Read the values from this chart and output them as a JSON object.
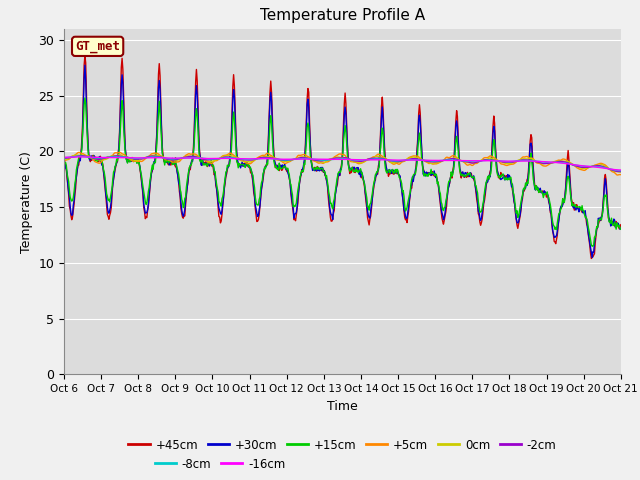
{
  "title": "Temperature Profile A",
  "xlabel": "Time",
  "ylabel": "Temperature (C)",
  "ylim": [
    0,
    31
  ],
  "yticks": [
    0,
    5,
    10,
    15,
    20,
    25,
    30
  ],
  "fig_bg": "#f0f0f0",
  "plot_bg": "#dcdcdc",
  "annotation_text": "GT_met",
  "annotation_fg": "#8B0000",
  "annotation_bg": "#ffffcc",
  "annotation_edge": "#8B0000",
  "colors": {
    "+45cm": "#cc0000",
    "+30cm": "#0000cc",
    "+15cm": "#00cc00",
    "+5cm": "#ff8800",
    "0cm": "#cccc00",
    "-2cm": "#9900cc",
    "-8cm": "#00cccc",
    "-16cm": "#ff00ff"
  },
  "xtick_labels": [
    "Oct 6",
    "Oct 7",
    "Oct 8",
    "Oct 9",
    "Oct 10",
    "Oct 11",
    "Oct 12",
    "Oct 13",
    "Oct 14",
    "Oct 15",
    "Oct 16",
    "Oct 17",
    "Oct 18",
    "Oct 19",
    "Oct 20",
    "Oct 21"
  ],
  "n_days": 15,
  "pts_per_day": 48,
  "grid_color": "#ffffff",
  "lw": 1.0
}
